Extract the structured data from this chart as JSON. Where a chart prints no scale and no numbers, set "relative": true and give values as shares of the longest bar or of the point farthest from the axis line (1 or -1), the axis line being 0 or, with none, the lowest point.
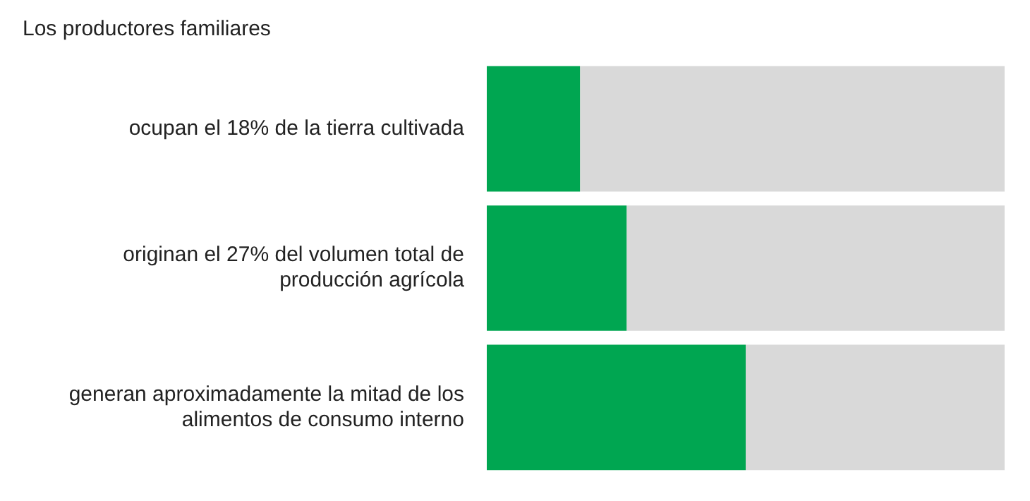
{
  "chart_data": {
    "type": "bar",
    "orientation": "horizontal",
    "stacked": true,
    "relative": true,
    "title": "Los productores familiares",
    "categories": [
      "ocupan el 18% de la tierra cultivada",
      "originan el 27% del volumen total de producción agrícola",
      "generan aproximadamente la mitad de los alimentos de consumo interno"
    ],
    "series": [
      {
        "color": "#00a651",
        "values": [
          0.18,
          0.27,
          0.5
        ]
      },
      {
        "color": "#d9d9d9",
        "values": [
          0.82,
          0.73,
          0.5
        ]
      }
    ]
  }
}
